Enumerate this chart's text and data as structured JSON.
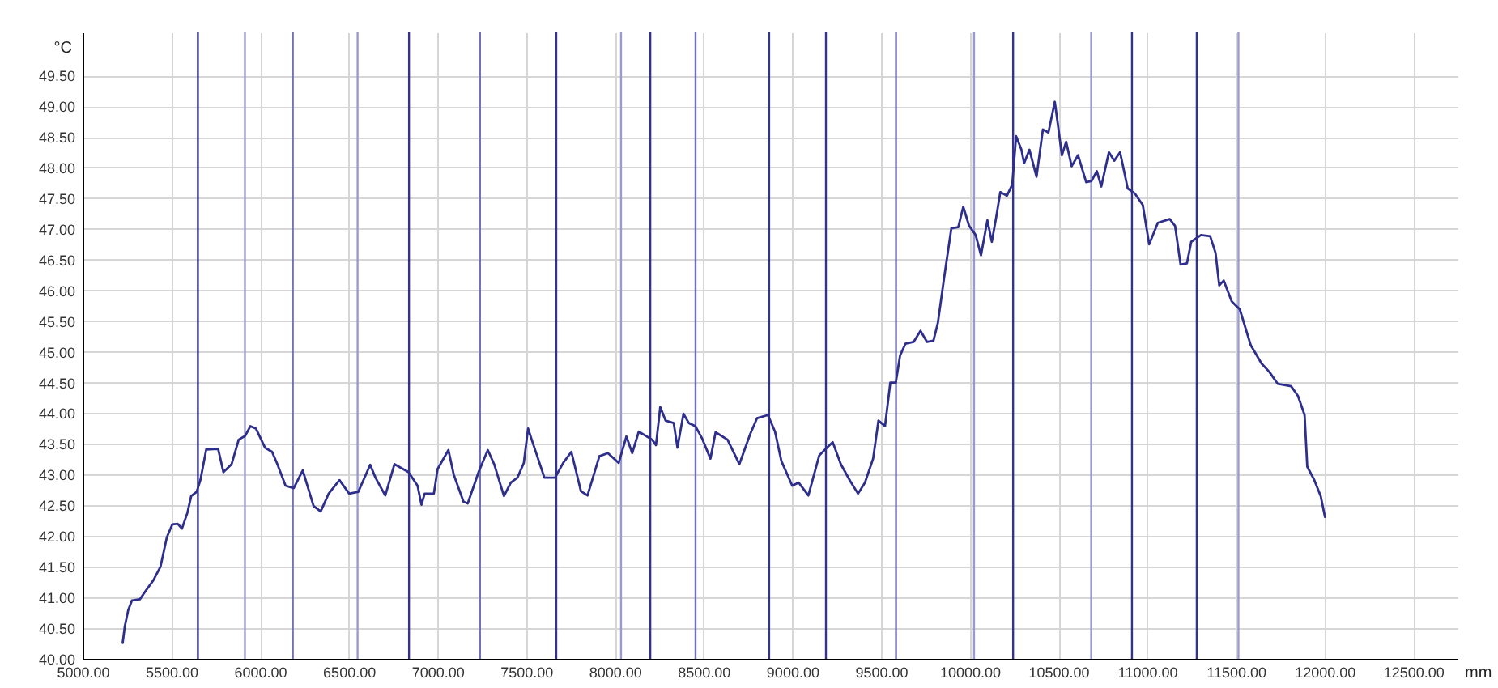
{
  "chart_data": {
    "type": "line",
    "xlabel": "mm",
    "ylabel": "°C",
    "xlim": [
      5000,
      12750
    ],
    "ylim": [
      40,
      50.2
    ],
    "xticks": [
      {
        "value": 5000,
        "label": "5000.00"
      },
      {
        "value": 5500,
        "label": "5500.00"
      },
      {
        "value": 6000,
        "label": "6000.00"
      },
      {
        "value": 6500,
        "label": "6500.00"
      },
      {
        "value": 7000,
        "label": "7000.00"
      },
      {
        "value": 7500,
        "label": "7500.00"
      },
      {
        "value": 8000,
        "label": "8000.00"
      },
      {
        "value": 8500,
        "label": "8500.00"
      },
      {
        "value": 9000,
        "label": "9000.00"
      },
      {
        "value": 9500,
        "label": "9500.00"
      },
      {
        "value": 10000,
        "label": "10000.00"
      },
      {
        "value": 10500,
        "label": "10500.00"
      },
      {
        "value": 11000,
        "label": "11000.00"
      },
      {
        "value": 11500,
        "label": "11500.00"
      },
      {
        "value": 12000,
        "label": "12000.00"
      },
      {
        "value": 12500,
        "label": "12500.00"
      }
    ],
    "yticks": [
      {
        "value": 40,
        "label": "40.00"
      },
      {
        "value": 40.5,
        "label": "40.50"
      },
      {
        "value": 41,
        "label": "41.00"
      },
      {
        "value": 41.5,
        "label": "41.50"
      },
      {
        "value": 42,
        "label": "42.00"
      },
      {
        "value": 42.5,
        "label": "42.50"
      },
      {
        "value": 43,
        "label": "43.00"
      },
      {
        "value": 43.5,
        "label": "43.50"
      },
      {
        "value": 44,
        "label": "44.00"
      },
      {
        "value": 44.5,
        "label": "44.50"
      },
      {
        "value": 45,
        "label": "45.00"
      },
      {
        "value": 45.5,
        "label": "45.50"
      },
      {
        "value": 46,
        "label": "46.00"
      },
      {
        "value": 46.5,
        "label": "46.50"
      },
      {
        "value": 47,
        "label": "47.00"
      },
      {
        "value": 47.5,
        "label": "47.50"
      },
      {
        "value": 48,
        "label": "48.00"
      },
      {
        "value": 48.5,
        "label": "48.50"
      },
      {
        "value": 49,
        "label": "49.00"
      },
      {
        "value": 49.5,
        "label": "49.50"
      }
    ],
    "grid": true,
    "x": [
      5226,
      5238,
      5257,
      5278,
      5323,
      5354,
      5399,
      5439,
      5475,
      5506,
      5536,
      5560,
      5591,
      5612,
      5643,
      5664,
      5697,
      5764,
      5794,
      5840,
      5880,
      5916,
      5946,
      5977,
      6028,
      6068,
      6098,
      6144,
      6190,
      6241,
      6302,
      6342,
      6387,
      6448,
      6503,
      6554,
      6621,
      6651,
      6706,
      6758,
      6837,
      6888,
      6910,
      6928,
      6980,
      7001,
      7062,
      7092,
      7147,
      7171,
      7232,
      7284,
      7320,
      7375,
      7414,
      7451,
      7487,
      7511,
      7536,
      7603,
      7663,
      7709,
      7755,
      7809,
      7846,
      7913,
      7961,
      8022,
      8065,
      8098,
      8135,
      8210,
      8232,
      8256,
      8286,
      8332,
      8353,
      8387,
      8417,
      8454,
      8490,
      8539,
      8568,
      8635,
      8702,
      8763,
      8802,
      8863,
      8903,
      8939,
      9000,
      9036,
      9091,
      9152,
      9182,
      9228,
      9274,
      9328,
      9371,
      9410,
      9456,
      9486,
      9523,
      9553,
      9584,
      9608,
      9638,
      9684,
      9723,
      9760,
      9796,
      9821,
      9857,
      9897,
      9936,
      9964,
      9997,
      10034,
      10064,
      10100,
      10125,
      10149,
      10173,
      10210,
      10240,
      10262,
      10292,
      10307,
      10337,
      10377,
      10413,
      10444,
      10480,
      10496,
      10520,
      10544,
      10575,
      10611,
      10657,
      10687,
      10717,
      10742,
      10785,
      10815,
      10848,
      10891,
      10930,
      10976,
      11012,
      11061,
      11128,
      11158,
      11189,
      11225,
      11249,
      11304,
      11356,
      11386,
      11407,
      11432,
      11477,
      11523,
      11584,
      11645,
      11690,
      11736,
      11812,
      11851,
      11888,
      11903,
      11943,
      11979,
      12003
    ],
    "series": [
      {
        "color": "#2e2e8c",
        "values": [
          40.26,
          40.53,
          40.79,
          40.95,
          40.97,
          41.1,
          41.28,
          41.5,
          41.98,
          42.19,
          42.2,
          42.12,
          42.38,
          42.65,
          42.72,
          42.91,
          43.41,
          43.42,
          43.04,
          43.17,
          43.57,
          43.63,
          43.79,
          43.75,
          43.44,
          43.37,
          43.17,
          42.82,
          42.78,
          43.07,
          42.49,
          42.4,
          42.69,
          42.91,
          42.69,
          42.72,
          43.16,
          42.95,
          42.66,
          43.17,
          43.04,
          42.82,
          42.51,
          42.69,
          42.69,
          43.09,
          43.4,
          43.0,
          42.56,
          42.53,
          43.04,
          43.4,
          43.17,
          42.65,
          42.87,
          42.95,
          43.19,
          43.75,
          43.53,
          42.95,
          42.95,
          43.19,
          43.37,
          42.73,
          42.66,
          43.3,
          43.35,
          43.19,
          43.62,
          43.35,
          43.7,
          43.57,
          43.48,
          44.1,
          43.88,
          43.84,
          43.44,
          43.99,
          43.84,
          43.79,
          43.6,
          43.26,
          43.69,
          43.57,
          43.17,
          43.66,
          43.92,
          43.97,
          43.7,
          43.22,
          42.82,
          42.87,
          42.66,
          43.31,
          43.4,
          43.53,
          43.17,
          42.89,
          42.69,
          42.87,
          43.26,
          43.88,
          43.79,
          44.5,
          44.5,
          44.94,
          45.13,
          45.16,
          45.34,
          45.16,
          45.18,
          45.47,
          46.22,
          47.01,
          47.03,
          47.36,
          47.05,
          46.9,
          46.57,
          47.14,
          46.79,
          47.18,
          47.6,
          47.54,
          47.72,
          48.51,
          48.29,
          48.07,
          48.29,
          47.85,
          48.62,
          48.57,
          49.07,
          48.73,
          48.2,
          48.42,
          48.02,
          48.2,
          47.76,
          47.78,
          47.94,
          47.69,
          48.25,
          48.11,
          48.25,
          47.66,
          47.58,
          47.39,
          46.75,
          47.1,
          47.16,
          47.05,
          46.42,
          46.44,
          46.79,
          46.9,
          46.88,
          46.61,
          46.08,
          46.16,
          45.82,
          45.69,
          45.11,
          44.81,
          44.67,
          44.48,
          44.44,
          44.28,
          43.97,
          43.13,
          42.91,
          42.65,
          42.31
        ]
      }
    ],
    "ref_lines": [
      {
        "axis": "x",
        "value": 5650,
        "color": "#33338f"
      },
      {
        "axis": "x",
        "value": 5915,
        "color": "#9a9ad0"
      },
      {
        "axis": "x",
        "value": 6185,
        "color": "#7070b8"
      },
      {
        "axis": "x",
        "value": 6550,
        "color": "#9a9ad0"
      },
      {
        "axis": "x",
        "value": 6840,
        "color": "#33338f"
      },
      {
        "axis": "x",
        "value": 7240,
        "color": "#7070b8"
      },
      {
        "axis": "x",
        "value": 7670,
        "color": "#33338f"
      },
      {
        "axis": "x",
        "value": 8035,
        "color": "#9a9ad0"
      },
      {
        "axis": "x",
        "value": 8200,
        "color": "#33338f"
      },
      {
        "axis": "x",
        "value": 8455,
        "color": "#7070b8"
      },
      {
        "axis": "x",
        "value": 8870,
        "color": "#33338f"
      },
      {
        "axis": "x",
        "value": 9190,
        "color": "#33338f"
      },
      {
        "axis": "x",
        "value": 9585,
        "color": "#7070b8"
      },
      {
        "axis": "x",
        "value": 10025,
        "color": "#9a9ad0"
      },
      {
        "axis": "x",
        "value": 10245,
        "color": "#33338f"
      },
      {
        "axis": "x",
        "value": 10685,
        "color": "#9a9ad0"
      },
      {
        "axis": "x",
        "value": 10915,
        "color": "#33338f"
      },
      {
        "axis": "x",
        "value": 11280,
        "color": "#33338f"
      },
      {
        "axis": "x",
        "value": 11515,
        "color": "#9a9ad0"
      }
    ]
  }
}
